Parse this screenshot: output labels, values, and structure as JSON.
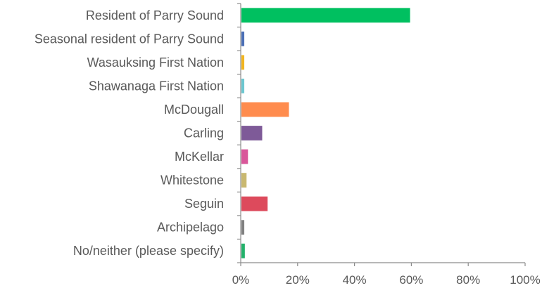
{
  "chart_data": {
    "type": "bar",
    "orientation": "horizontal",
    "categories": [
      "Resident of  Parry Sound",
      "Seasonal resident of  Parry Sound",
      "Wasauksing First Nation",
      "Shawanaga First Nation",
      "McDougall",
      "Carling",
      "McKellar",
      "Whitestone",
      "Seguin",
      "Archipelago",
      "No/neither (please specify)"
    ],
    "values": [
      59.3,
      1.0,
      1.0,
      1.0,
      16.7,
      7.3,
      2.3,
      1.8,
      9.2,
      1.0,
      1.2
    ],
    "unit": "%",
    "colors": [
      "#00c060",
      "#4b6fb6",
      "#f2b51f",
      "#6cc7d0",
      "#ff8c4e",
      "#7e5a98",
      "#d9579a",
      "#c9b870",
      "#dd4a5c",
      "#808080",
      "#23b26b"
    ],
    "xlim": [
      0,
      100
    ],
    "xticks": [
      0,
      20,
      40,
      60,
      80,
      100
    ],
    "xtick_labels": [
      "0%",
      "20%",
      "40%",
      "60%",
      "80%",
      "100%"
    ],
    "title": "",
    "xlabel": "",
    "ylabel": "",
    "grid": false,
    "legend": "none"
  }
}
